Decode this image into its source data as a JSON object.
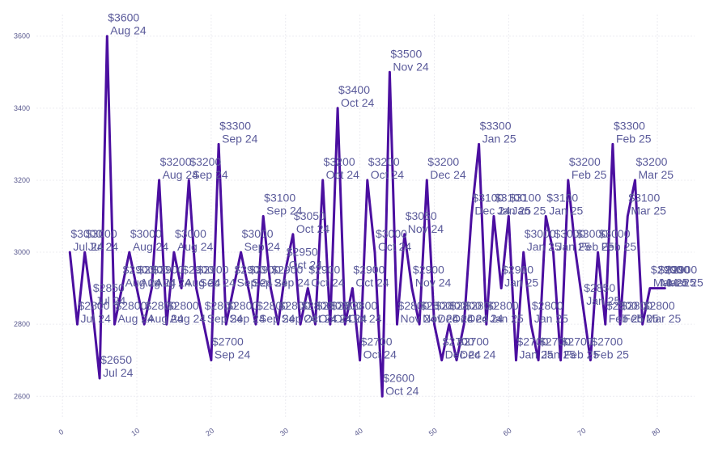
{
  "chart_data": {
    "type": "line",
    "title": "",
    "xlabel": "",
    "ylabel": "",
    "xlim": [
      -3.5,
      85
    ],
    "ylim": [
      2540,
      3660
    ],
    "xticks": [
      0,
      10,
      20,
      30,
      40,
      50,
      60,
      70,
      80
    ],
    "yticks": [
      2600,
      2800,
      3000,
      3200,
      3400,
      3600
    ],
    "grid": true,
    "line_color": "#4b0fa0",
    "label_color": "#5a5a9a",
    "x": [
      1,
      2,
      3,
      4,
      5,
      6,
      7,
      8,
      9,
      10,
      11,
      12,
      13,
      14,
      15,
      16,
      17,
      18,
      19,
      20,
      21,
      22,
      23,
      24,
      25,
      26,
      27,
      28,
      29,
      30,
      31,
      32,
      33,
      34,
      35,
      36,
      37,
      38,
      39,
      40,
      41,
      42,
      43,
      44,
      45,
      46,
      47,
      48,
      49,
      50,
      51,
      52,
      53,
      54,
      55,
      56,
      57,
      58,
      59,
      60,
      61,
      62,
      63,
      64,
      65,
      66,
      67,
      68,
      69,
      70,
      71,
      72,
      73,
      74,
      75,
      76,
      77,
      78,
      79,
      80,
      81
    ],
    "values": [
      3000,
      2800,
      3000,
      2850,
      2650,
      3600,
      2800,
      2900,
      3000,
      2900,
      2800,
      2900,
      3200,
      2800,
      3000,
      2900,
      3200,
      2900,
      2800,
      2700,
      3300,
      2800,
      2900,
      3000,
      2900,
      2800,
      3100,
      2900,
      2800,
      2950,
      3050,
      2800,
      2900,
      2800,
      3200,
      2800,
      3400,
      2800,
      2900,
      2700,
      3200,
      3000,
      2600,
      3500,
      2800,
      3050,
      2900,
      2800,
      3200,
      2800,
      2700,
      2800,
      2700,
      2800,
      3100,
      3300,
      2800,
      3100,
      2900,
      3100,
      2700,
      3000,
      2800,
      2700,
      3100,
      3000,
      2700,
      3200,
      3000,
      2850,
      2700,
      3000,
      2800,
      3300,
      2800,
      3100,
      3200,
      2800,
      2900,
      2900,
      2900
    ],
    "point_labels": [
      [
        "$3000",
        "Jul 24"
      ],
      [
        "$2800",
        "Jul 24"
      ],
      [
        "$3000",
        "Jul 24"
      ],
      [
        "$2850",
        "Jul 24"
      ],
      [
        "$2650",
        "Jul 24"
      ],
      [
        "$3600",
        "Aug 24"
      ],
      [
        "$2800",
        "Aug 24"
      ],
      [
        "$2900",
        "Aug 24"
      ],
      [
        "$3000",
        "Aug 24"
      ],
      [
        "$2900",
        "Aug 24"
      ],
      [
        "$2800",
        "Aug 24"
      ],
      [
        "$2900",
        "Aug 24"
      ],
      [
        "$3200",
        "Aug 24"
      ],
      [
        "$2800",
        "Aug 24"
      ],
      [
        "$3000",
        "Aug 24"
      ],
      [
        "$2900",
        "Aug 24"
      ],
      [
        "$3200",
        "Sep 24"
      ],
      [
        "$2900",
        "Sep 24"
      ],
      [
        "$2800",
        "Sep 24"
      ],
      [
        "$2700",
        "Sep 24"
      ],
      [
        "$3300",
        "Sep 24"
      ],
      [
        "$2800",
        "Sep 24"
      ],
      [
        "$2900",
        "Sep 24"
      ],
      [
        "$3000",
        "Sep 24"
      ],
      [
        "$2900",
        "Sep 24"
      ],
      [
        "$2800",
        "Sep 24"
      ],
      [
        "$3100",
        "Sep 24"
      ],
      [
        "$2900",
        "Sep 24"
      ],
      [
        "$2800",
        "Sep 24"
      ],
      [
        "$2950",
        "Oct 24"
      ],
      [
        "$3050",
        "Oct 24"
      ],
      [
        "$2800",
        "Oct 24"
      ],
      [
        "$2900",
        "Oct 24"
      ],
      [
        "$2800",
        "Oct 24"
      ],
      [
        "$3200",
        "Oct 24"
      ],
      [
        "$2800",
        "Oct 24"
      ],
      [
        "$3400",
        "Oct 24"
      ],
      [
        "$2800",
        "Oct 24"
      ],
      [
        "$2900",
        "Oct 24"
      ],
      [
        "$2700",
        "Oct 24"
      ],
      [
        "$3200",
        "Oct 24"
      ],
      [
        "$3000",
        "Oct 24"
      ],
      [
        "$2600",
        "Oct 24"
      ],
      [
        "$3500",
        "Nov 24"
      ],
      [
        "$2800",
        "Nov 24"
      ],
      [
        "$3050",
        "Nov 24"
      ],
      [
        "$2900",
        "Nov 24"
      ],
      [
        "$2800",
        "Nov 24"
      ],
      [
        "$3200",
        "Dec 24"
      ],
      [
        "$2800",
        "Dec 24"
      ],
      [
        "$2700",
        "Dec 24"
      ],
      [
        "$2800",
        "Dec 24"
      ],
      [
        "$2700",
        "Dec 24"
      ],
      [
        "$2800",
        "Dec 24"
      ],
      [
        "$3100",
        "Dec 24"
      ],
      [
        "$3300",
        "Jan 25"
      ],
      [
        "$2800",
        "Jan 25"
      ],
      [
        "$3100",
        "Jan 25"
      ],
      [
        "$2900",
        "Jan 25"
      ],
      [
        "$3100",
        "Jan 25"
      ],
      [
        "$2700",
        "Jan 25"
      ],
      [
        "$3000",
        "Jan 25"
      ],
      [
        "$2800",
        "Jan 25"
      ],
      [
        "$2700",
        "Jan 25"
      ],
      [
        "$3100",
        "Jan 25"
      ],
      [
        "$3000",
        "Jan 25"
      ],
      [
        "$2700",
        "Feb 25"
      ],
      [
        "$3200",
        "Feb 25"
      ],
      [
        "$3000",
        "Feb 25"
      ],
      [
        "$2850",
        "Jan 25"
      ],
      [
        "$2700",
        "Feb 25"
      ],
      [
        "$3000",
        "Feb 25"
      ],
      [
        "$2800",
        "Feb 25"
      ],
      [
        "$3300",
        "Feb 25"
      ],
      [
        "$2800",
        "Feb 25"
      ],
      [
        "$3100",
        "Mar 25"
      ],
      [
        "$3200",
        "Mar 25"
      ],
      [
        "$2800",
        "Mar 25"
      ],
      [
        "$2900",
        "Mar 25"
      ],
      [
        "$2900",
        "Mar 25"
      ],
      [
        "$2900",
        "Mar 25"
      ]
    ]
  }
}
